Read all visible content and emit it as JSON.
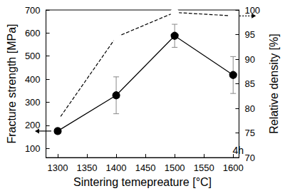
{
  "chart_data": {
    "type": "line",
    "x": [
      1300,
      1400,
      1500,
      1600
    ],
    "xlabel": "Sintering temepreature [°C]",
    "ylabel": "Fracture strength [MPa]",
    "y2label": "Relative density [%]",
    "xlim": [
      1280,
      1610
    ],
    "xticks": [
      1300,
      1350,
      1400,
      1450,
      1500,
      1550,
      1600
    ],
    "ylim": [
      60,
      700
    ],
    "yticks": [
      100,
      200,
      300,
      400,
      500,
      600,
      700
    ],
    "y2lim": [
      70,
      100
    ],
    "y2ticks": [
      70,
      75,
      80,
      85,
      90,
      95,
      100
    ],
    "grid": false,
    "series": [
      {
        "color": "#000000",
        "marker": "circle",
        "line_style": "solid",
        "values": [
          175,
          330,
          588,
          418
        ],
        "errors": [
          10,
          80,
          50,
          80
        ]
      },
      {
        "color": "#000000",
        "marker": "open_circle",
        "line_style": "dashed",
        "axis": "y2",
        "values": [
          77.5,
          94.5,
          99.5,
          98.8
        ]
      }
    ],
    "annotations": [
      "4h"
    ]
  }
}
